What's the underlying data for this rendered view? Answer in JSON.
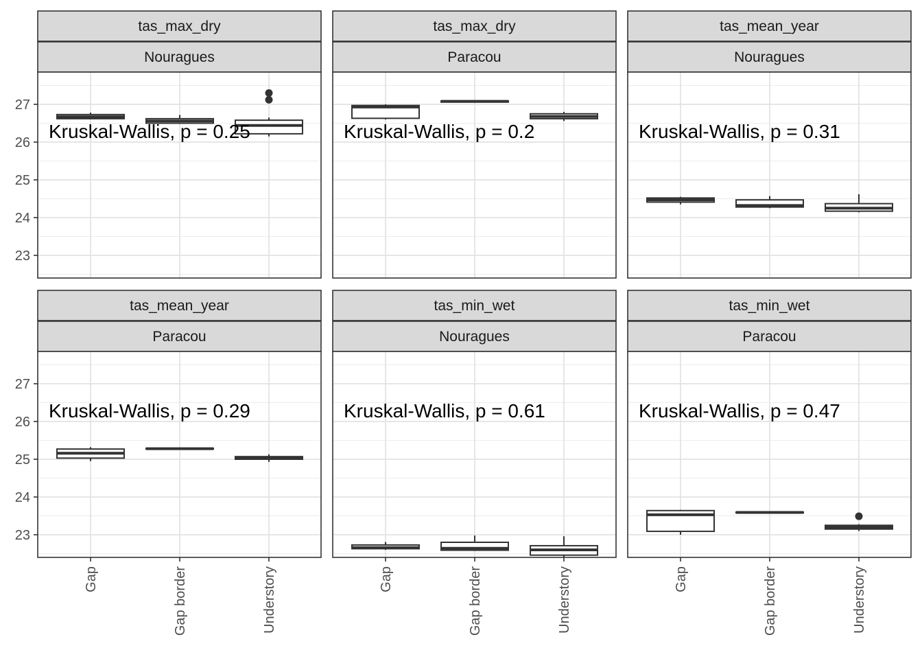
{
  "chart_data": {
    "type": "boxplot",
    "facets_layout": "3 columns x 2 rows",
    "categories": [
      "Gap",
      "Gap border",
      "Understory"
    ],
    "y_axis": {
      "ticks": [
        23,
        24,
        25,
        26,
        27
      ],
      "ylim": [
        22.15,
        27.6
      ]
    },
    "grid": true,
    "panels": [
      {
        "variable": "tas_max_dry",
        "site": "Nouragues",
        "annotation": "Kruskal-Wallis, p = 0.25",
        "boxes": [
          {
            "category": "Gap",
            "min": 26.6,
            "q1": 26.62,
            "median": 26.67,
            "q3": 26.73,
            "max": 26.78,
            "outliers": []
          },
          {
            "category": "Gap border",
            "min": 26.48,
            "q1": 26.5,
            "median": 26.56,
            "q3": 26.62,
            "max": 26.72,
            "outliers": []
          },
          {
            "category": "Understory",
            "min": 26.15,
            "q1": 26.22,
            "median": 26.44,
            "q3": 26.58,
            "max": 26.65,
            "outliers": [
              27.12,
              27.3
            ]
          }
        ]
      },
      {
        "variable": "tas_max_dry",
        "site": "Paracou",
        "annotation": "Kruskal-Wallis, p = 0.2",
        "boxes": [
          {
            "category": "Gap",
            "min": 26.6,
            "q1": 26.63,
            "median": 26.93,
            "q3": 26.97,
            "max": 27.0,
            "outliers": []
          },
          {
            "category": "Gap border",
            "min": 27.06,
            "q1": 27.06,
            "median": 27.08,
            "q3": 27.09,
            "max": 27.09,
            "outliers": []
          },
          {
            "category": "Understory",
            "min": 26.56,
            "q1": 26.62,
            "median": 26.68,
            "q3": 26.75,
            "max": 26.8,
            "outliers": []
          }
        ]
      },
      {
        "variable": "tas_mean_year",
        "site": "Nouragues",
        "annotation": "Kruskal-Wallis, p = 0.31",
        "boxes": [
          {
            "category": "Gap",
            "min": 24.35,
            "q1": 24.41,
            "median": 24.47,
            "q3": 24.52,
            "max": 24.55,
            "outliers": []
          },
          {
            "category": "Gap border",
            "min": 24.25,
            "q1": 24.28,
            "median": 24.32,
            "q3": 24.47,
            "max": 24.57,
            "outliers": []
          },
          {
            "category": "Understory",
            "min": 24.14,
            "q1": 24.17,
            "median": 24.25,
            "q3": 24.37,
            "max": 24.62,
            "outliers": []
          }
        ]
      },
      {
        "variable": "tas_mean_year",
        "site": "Paracou",
        "annotation": "Kruskal-Wallis, p = 0.29",
        "boxes": [
          {
            "category": "Gap",
            "min": 24.95,
            "q1": 25.03,
            "median": 25.16,
            "q3": 25.27,
            "max": 25.32,
            "outliers": []
          },
          {
            "category": "Gap border",
            "min": 25.26,
            "q1": 25.27,
            "median": 25.28,
            "q3": 25.29,
            "max": 25.3,
            "outliers": []
          },
          {
            "category": "Understory",
            "min": 24.93,
            "q1": 25.0,
            "median": 25.04,
            "q3": 25.07,
            "max": 25.13,
            "outliers": []
          }
        ]
      },
      {
        "variable": "tas_min_wet",
        "site": "Nouragues",
        "annotation": "Kruskal-Wallis, p = 0.61",
        "boxes": [
          {
            "category": "Gap",
            "min": 22.6,
            "q1": 22.63,
            "median": 22.66,
            "q3": 22.73,
            "max": 22.81,
            "outliers": []
          },
          {
            "category": "Gap border",
            "min": 22.57,
            "q1": 22.59,
            "median": 22.64,
            "q3": 22.8,
            "max": 22.98,
            "outliers": []
          },
          {
            "category": "Understory",
            "min": 22.38,
            "q1": 22.46,
            "median": 22.6,
            "q3": 22.71,
            "max": 22.96,
            "outliers": []
          }
        ]
      },
      {
        "variable": "tas_min_wet",
        "site": "Paracou",
        "annotation": "Kruskal-Wallis, p = 0.47",
        "boxes": [
          {
            "category": "Gap",
            "min": 23.0,
            "q1": 23.09,
            "median": 23.53,
            "q3": 23.64,
            "max": 23.66,
            "outliers": []
          },
          {
            "category": "Gap border",
            "min": 23.58,
            "q1": 23.58,
            "median": 23.59,
            "q3": 23.6,
            "max": 23.61,
            "outliers": []
          },
          {
            "category": "Understory",
            "min": 23.1,
            "q1": 23.15,
            "median": 23.2,
            "q3": 23.25,
            "max": 23.28,
            "outliers": [
              23.49
            ]
          }
        ]
      }
    ]
  }
}
